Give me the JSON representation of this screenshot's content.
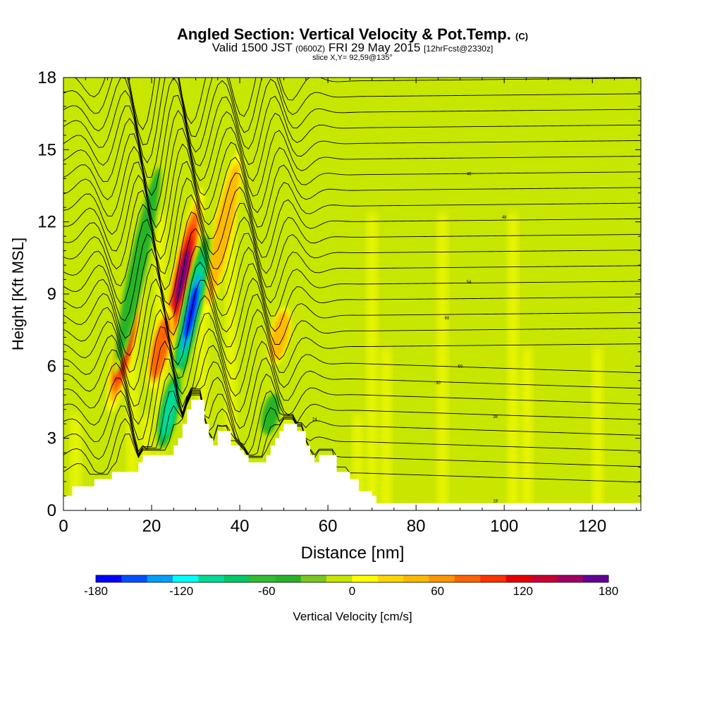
{
  "header": {
    "title": "Angled Section: Vertical Velocity & Pot.Temp.",
    "title_suffix": "(C)",
    "valid_prefix": "Valid 1500 JST",
    "valid_utc": "(0600Z)",
    "valid_date": "FRI 29 May 2015",
    "forecast": "[12hrFcst@2330z]",
    "slice": "slice X,Y= 92,59@135°"
  },
  "chart_data": {
    "type": "heatmap",
    "xlabel": "Distance [nm]",
    "ylabel": "Height [Kft MSL]",
    "xlim": [
      0,
      131
    ],
    "ylim": [
      0,
      18
    ],
    "x_ticks": [
      "0",
      "20",
      "40",
      "60",
      "80",
      "100",
      "120"
    ],
    "y_ticks": [
      "0",
      "3",
      "6",
      "9",
      "12",
      "15",
      "18"
    ],
    "colorbar": {
      "label": "Vertical Velocity [cm/s]",
      "range": [
        -180,
        180
      ],
      "tick_labels": [
        "-180",
        "-120",
        "-60",
        "0",
        "60",
        "120",
        "180"
      ],
      "colors": [
        "#0000ff",
        "#0050ff",
        "#00a0ff",
        "#00ffff",
        "#00dc96",
        "#00c864",
        "#32be32",
        "#28b428",
        "#78c81e",
        "#c8e600",
        "#ffff00",
        "#ffd700",
        "#ffb900",
        "#ff9600",
        "#ff6400",
        "#ff3200",
        "#e60000",
        "#c80032",
        "#a00064",
        "#640096"
      ]
    },
    "terrain_kft": [
      [
        0,
        0.6
      ],
      [
        2,
        1.0
      ],
      [
        7,
        1.3
      ],
      [
        11,
        1.6
      ],
      [
        15,
        1.6
      ],
      [
        17,
        2.0
      ],
      [
        18,
        2.3
      ],
      [
        24,
        2.3
      ],
      [
        25,
        2.7
      ],
      [
        26,
        3.0
      ],
      [
        27,
        3.6
      ],
      [
        28,
        4.2
      ],
      [
        29,
        4.6
      ],
      [
        31,
        4.6
      ],
      [
        32,
        3.6
      ],
      [
        33,
        3.0
      ],
      [
        34,
        2.7
      ],
      [
        35,
        3.3
      ],
      [
        37,
        3.3
      ],
      [
        38,
        2.7
      ],
      [
        39,
        2.7
      ],
      [
        40,
        2.5
      ],
      [
        41,
        2.3
      ],
      [
        42,
        2.0
      ],
      [
        45,
        2.0
      ],
      [
        46,
        2.3
      ],
      [
        47,
        2.7
      ],
      [
        48,
        3.0
      ],
      [
        49,
        3.3
      ],
      [
        50,
        3.6
      ],
      [
        52,
        3.6
      ],
      [
        53,
        3.3
      ],
      [
        55,
        2.7
      ],
      [
        56,
        2.3
      ],
      [
        57,
        2.0
      ],
      [
        58,
        2.3
      ],
      [
        60,
        2.3
      ],
      [
        62,
        1.6
      ],
      [
        65,
        1.3
      ],
      [
        67,
        0.8
      ],
      [
        70,
        0.6
      ],
      [
        71,
        0.3
      ],
      [
        131,
        0.3
      ]
    ],
    "updraft_cores": [
      {
        "x": 14,
        "bottom_kft": 4.0,
        "top_kft": 10.0,
        "max_cms": 150
      },
      {
        "x": 27,
        "bottom_kft": 6.0,
        "top_kft": 13.5,
        "max_cms": 170
      },
      {
        "x": 22,
        "bottom_kft": 5.0,
        "top_kft": 8.5,
        "max_cms": 90
      },
      {
        "x": 36,
        "bottom_kft": 8.0,
        "top_kft": 15.0,
        "max_cms": 60
      },
      {
        "x": 49,
        "bottom_kft": 6.0,
        "top_kft": 8.5,
        "max_cms": 60
      }
    ],
    "downdraft_cores": [
      {
        "x": 29,
        "bottom_kft": 4.5,
        "top_kft": 12.0,
        "min_cms": -170
      },
      {
        "x": 24,
        "bottom_kft": 2.3,
        "top_kft": 6.0,
        "min_cms": -110
      },
      {
        "x": 17,
        "bottom_kft": 5.5,
        "top_kft": 15.0,
        "min_cms": -60
      },
      {
        "x": 47,
        "bottom_kft": 3.0,
        "top_kft": 5.0,
        "min_cms": -60
      }
    ],
    "contour_labels": [
      {
        "x": 87,
        "y_kft": 8.0,
        "text": "68"
      },
      {
        "x": 90,
        "y_kft": 6.0,
        "text": "60"
      },
      {
        "x": 92,
        "y_kft": 9.5,
        "text": "54"
      },
      {
        "x": 100,
        "y_kft": 12.2,
        "text": "48"
      },
      {
        "x": 92,
        "y_kft": 14.0,
        "text": "46"
      },
      {
        "x": 85,
        "y_kft": 5.3,
        "text": "30"
      },
      {
        "x": 98,
        "y_kft": 3.9,
        "text": "38"
      },
      {
        "x": 98,
        "y_kft": 0.4,
        "text": "18"
      },
      {
        "x": 57,
        "y_kft": 3.8,
        "text": "24"
      }
    ]
  }
}
